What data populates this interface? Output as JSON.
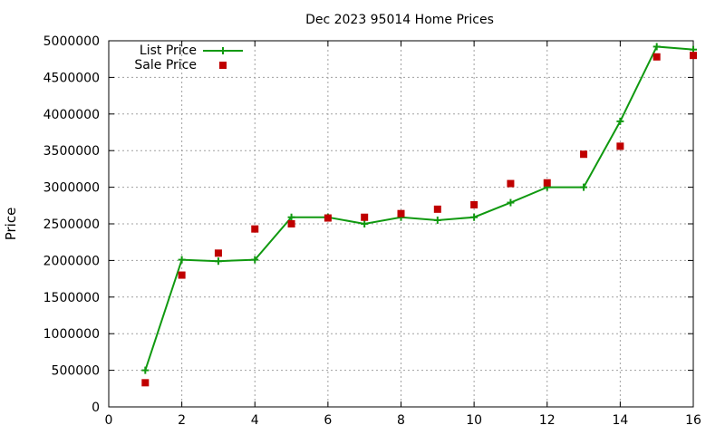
{
  "chart_data": {
    "type": "line",
    "title": "Dec 2023 95014 Home Prices",
    "xlabel": "",
    "ylabel": "Price",
    "xlim": [
      0,
      16
    ],
    "ylim": [
      0,
      5000000
    ],
    "x_ticks": [
      0,
      2,
      4,
      6,
      8,
      10,
      12,
      14,
      16
    ],
    "y_ticks": [
      0,
      500000,
      1000000,
      1500000,
      2000000,
      2500000,
      3000000,
      3500000,
      4000000,
      4500000,
      5000000
    ],
    "grid": true,
    "legend_position": "top-left",
    "series": [
      {
        "name": "List Price",
        "style": "line+plus",
        "color": "#109910",
        "x": [
          1,
          2,
          3,
          4,
          5,
          6,
          7,
          8,
          9,
          10,
          11,
          12,
          13,
          14,
          15,
          16
        ],
        "values": [
          500000,
          2010000,
          1990000,
          2010000,
          2590000,
          2590000,
          2500000,
          2590000,
          2550000,
          2590000,
          2790000,
          3000000,
          3000000,
          3900000,
          4920000,
          4880000
        ]
      },
      {
        "name": "Sale Price",
        "style": "square",
        "color": "#c00000",
        "x": [
          1,
          2,
          3,
          4,
          5,
          6,
          7,
          8,
          9,
          10,
          11,
          12,
          13,
          14,
          15,
          16
        ],
        "values": [
          330000,
          1800000,
          2100000,
          2430000,
          2500000,
          2580000,
          2590000,
          2640000,
          2700000,
          2760000,
          3050000,
          3060000,
          3450000,
          3560000,
          4780000,
          4800000
        ]
      }
    ]
  }
}
